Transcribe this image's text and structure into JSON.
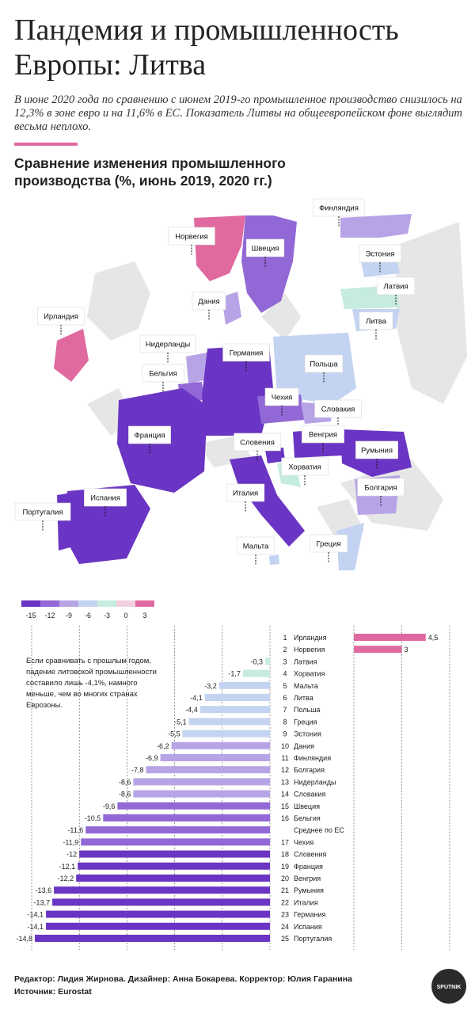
{
  "title": "Пандемия и промышленность Европы: Литва",
  "lead": "В июне 2020 года по сравнению с июнем 2019-го промышленное производство снизилось на 12,3% в зоне евро и на 11,6% в ЕС. Показатель Литвы на общеевропейском фоне выглядит весьма неплохо.",
  "subtitle": "Сравнение изменения промышленного производства (%, июнь 2019, 2020 гг.)",
  "note": "Если сравнивать с прошлым годом, падение литовской промышленности составило лишь -4,1%, намного меньше, чем во многих странах Еврозоны.",
  "colors": {
    "accent": "#e06aa0",
    "scale": [
      "#6a35c4",
      "#9168d6",
      "#b7a4e6",
      "#c3d3f1",
      "#c5ecde",
      "#f2cfe0",
      "#e06aa0"
    ],
    "neutral_land": "#e6e6e6"
  },
  "legend": {
    "labels": [
      "-15",
      "-12",
      "-9",
      "-6",
      "-3",
      "0",
      "3"
    ]
  },
  "map": {
    "labels": [
      "Финляндия",
      "Норвегия",
      "Швеция",
      "Эстония",
      "Латвия",
      "Дания",
      "Литва",
      "Ирландия",
      "Нидерланды",
      "Германия",
      "Польша",
      "Бельгия",
      "Чехия",
      "Словакия",
      "Франция",
      "Словения",
      "Венгрия",
      "Румыния",
      "Хорватия",
      "Болгария",
      "Португалия",
      "Испания",
      "Италия",
      "Мальта",
      "Греция"
    ]
  },
  "chart_data": {
    "type": "bar",
    "title": "Сравнение изменения промышленного производства (%, июнь 2019, 2020 гг.)",
    "orientation": "horizontal",
    "left_panel": {
      "xlim": [
        -15,
        0
      ],
      "ticks": [
        "-15",
        "-12",
        "-9",
        "-6",
        "-3",
        "0"
      ]
    },
    "right_panel": {
      "xlim": [
        0,
        6
      ],
      "ticks": [
        "0",
        "3",
        "6"
      ]
    },
    "rows": [
      {
        "rank": "1",
        "country": "Ирландия",
        "value": 4.5,
        "label": "4,5"
      },
      {
        "rank": "2",
        "country": "Норвегия",
        "value": 3,
        "label": "3"
      },
      {
        "rank": "3",
        "country": "Латвия",
        "value": -0.3,
        "label": "-0,3"
      },
      {
        "rank": "4",
        "country": "Хорватия",
        "value": -1.7,
        "label": "-1,7"
      },
      {
        "rank": "5",
        "country": "Мальта",
        "value": -3.2,
        "label": "-3,2"
      },
      {
        "rank": "6",
        "country": "Литва",
        "value": -4.1,
        "label": "-4,1"
      },
      {
        "rank": "7",
        "country": "Польша",
        "value": -4.4,
        "label": "-4,4"
      },
      {
        "rank": "8",
        "country": "Греция",
        "value": -5.1,
        "label": "-5,1"
      },
      {
        "rank": "9",
        "country": "Эстония",
        "value": -5.5,
        "label": "-5,5"
      },
      {
        "rank": "10",
        "country": "Дания",
        "value": -6.2,
        "label": "-6,2"
      },
      {
        "rank": "11",
        "country": "Финляндия",
        "value": -6.9,
        "label": "-6,9"
      },
      {
        "rank": "12",
        "country": "Болгария",
        "value": -7.8,
        "label": "-7,8"
      },
      {
        "rank": "13",
        "country": "Нидерланды",
        "value": -8.6,
        "label": "-8,6"
      },
      {
        "rank": "14",
        "country": "Словакия",
        "value": -8.6,
        "label": "-8,6"
      },
      {
        "rank": "15",
        "country": "Швеция",
        "value": -9.6,
        "label": "-9,6"
      },
      {
        "rank": "16",
        "country": "Бельгия",
        "value": -10.5,
        "label": "-10,5"
      },
      {
        "rank": "",
        "country": "Среднее по ЕС",
        "value": -11.6,
        "label": "-11,6"
      },
      {
        "rank": "17",
        "country": "Чехия",
        "value": -11.9,
        "label": "-11,9"
      },
      {
        "rank": "18",
        "country": "Словения",
        "value": -12,
        "label": "-12"
      },
      {
        "rank": "19",
        "country": "Франция",
        "value": -12.1,
        "label": "-12,1"
      },
      {
        "rank": "20",
        "country": "Венгрия",
        "value": -12.2,
        "label": "-12,2"
      },
      {
        "rank": "21",
        "country": "Румыния",
        "value": -13.6,
        "label": "-13,6"
      },
      {
        "rank": "22",
        "country": "Италия",
        "value": -13.7,
        "label": "-13,7"
      },
      {
        "rank": "23",
        "country": "Германия",
        "value": -14.1,
        "label": "-14,1"
      },
      {
        "rank": "24",
        "country": "Испания",
        "value": -14.1,
        "label": "-14,1"
      },
      {
        "rank": "25",
        "country": "Португалия",
        "value": -14.8,
        "label": "-14,8"
      }
    ]
  },
  "footer": {
    "credits": "Редактор: Лидия Жирнова. Дизайнер: Анна Бокарева. Корректор: Юлия Гаранина",
    "source": "Источник: Eurostat",
    "logo": "SPUTNIK"
  }
}
